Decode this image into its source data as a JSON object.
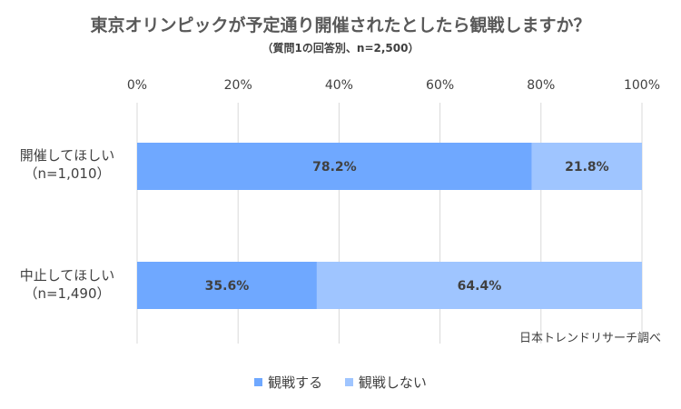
{
  "title": "東京オリンピックが予定通り開催されたとしたら観戦しますか？",
  "subtitle": "（質問1の回答別、n=2,500）",
  "source_note": "日本トレンドリサーチ調べ",
  "colors": {
    "series1": "#6fa8ff",
    "series2": "#9fc5ff",
    "grid": "#d9d9d9"
  },
  "chart_data": {
    "type": "bar",
    "orientation": "horizontal",
    "stacked": "percent",
    "categories": [
      {
        "line1": "開催してほしい",
        "line2": "（n=1,010）"
      },
      {
        "line1": "中止してほしい",
        "line2": "（n=1,490）"
      }
    ],
    "series": [
      {
        "name": "観戦する",
        "values": [
          78.2,
          35.6
        ],
        "labels": [
          "78.2%",
          "35.6%"
        ]
      },
      {
        "name": "観戦しない",
        "values": [
          21.8,
          64.4
        ],
        "labels": [
          "21.8%",
          "64.4%"
        ]
      }
    ],
    "xlim": [
      0,
      100
    ],
    "xticks": [
      "0%",
      "20%",
      "40%",
      "60%",
      "80%",
      "100%"
    ],
    "grid": true,
    "legend": "bottom"
  }
}
